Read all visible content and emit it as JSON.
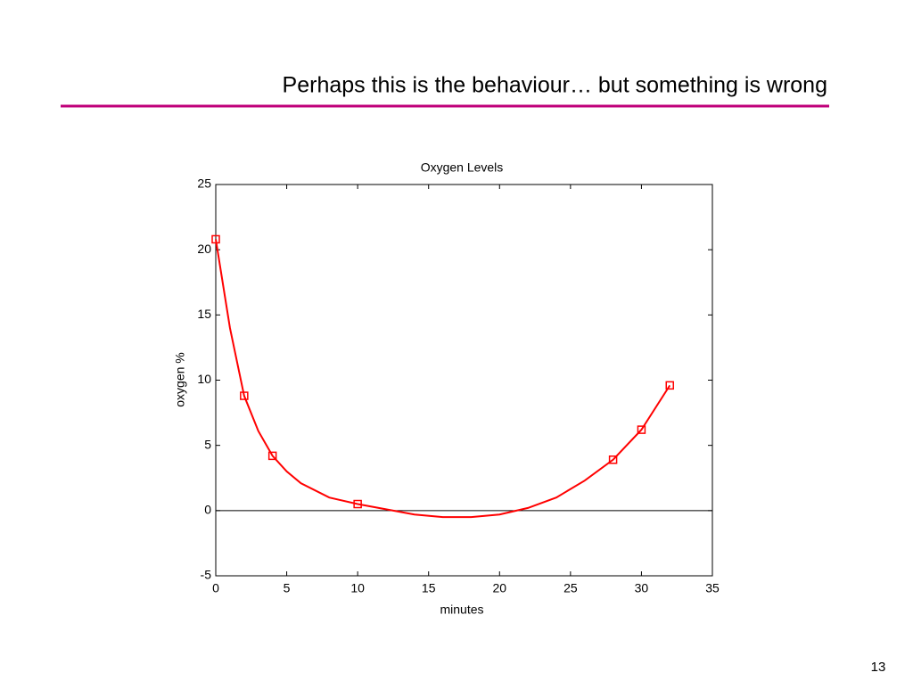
{
  "slide": {
    "title": "Perhaps this is the behaviour… but something is wrong",
    "page_number": "13"
  },
  "chart_data": {
    "type": "line",
    "title": "Oxygen Levels",
    "x_label": "minutes",
    "y_label": "oxygen %",
    "xlim": [
      0,
      35
    ],
    "ylim": [
      -5,
      25
    ],
    "xticks": [
      0,
      5,
      10,
      15,
      20,
      25,
      30,
      35
    ],
    "yticks": [
      -5,
      0,
      5,
      10,
      15,
      20,
      25
    ],
    "zero_line": true,
    "grid": false,
    "series": [
      {
        "color": "#ff0000",
        "marker": "square",
        "line": false,
        "x": [
          0,
          2,
          4,
          10,
          28,
          30,
          32
        ],
        "values": [
          20.8,
          8.8,
          4.2,
          0.5,
          3.9,
          6.2,
          9.6
        ]
      },
      {
        "color": "#ff0000",
        "marker": null,
        "line": true,
        "x": [
          0,
          1,
          2,
          3,
          4,
          5,
          6,
          8,
          10,
          12,
          14,
          16,
          18,
          20,
          22,
          24,
          26,
          28,
          30,
          32
        ],
        "values": [
          20.8,
          14.0,
          8.8,
          6.1,
          4.2,
          3.0,
          2.1,
          1.0,
          0.5,
          0.1,
          -0.3,
          -0.5,
          -0.5,
          -0.3,
          0.2,
          1.0,
          2.3,
          3.9,
          6.2,
          9.6
        ]
      }
    ]
  }
}
